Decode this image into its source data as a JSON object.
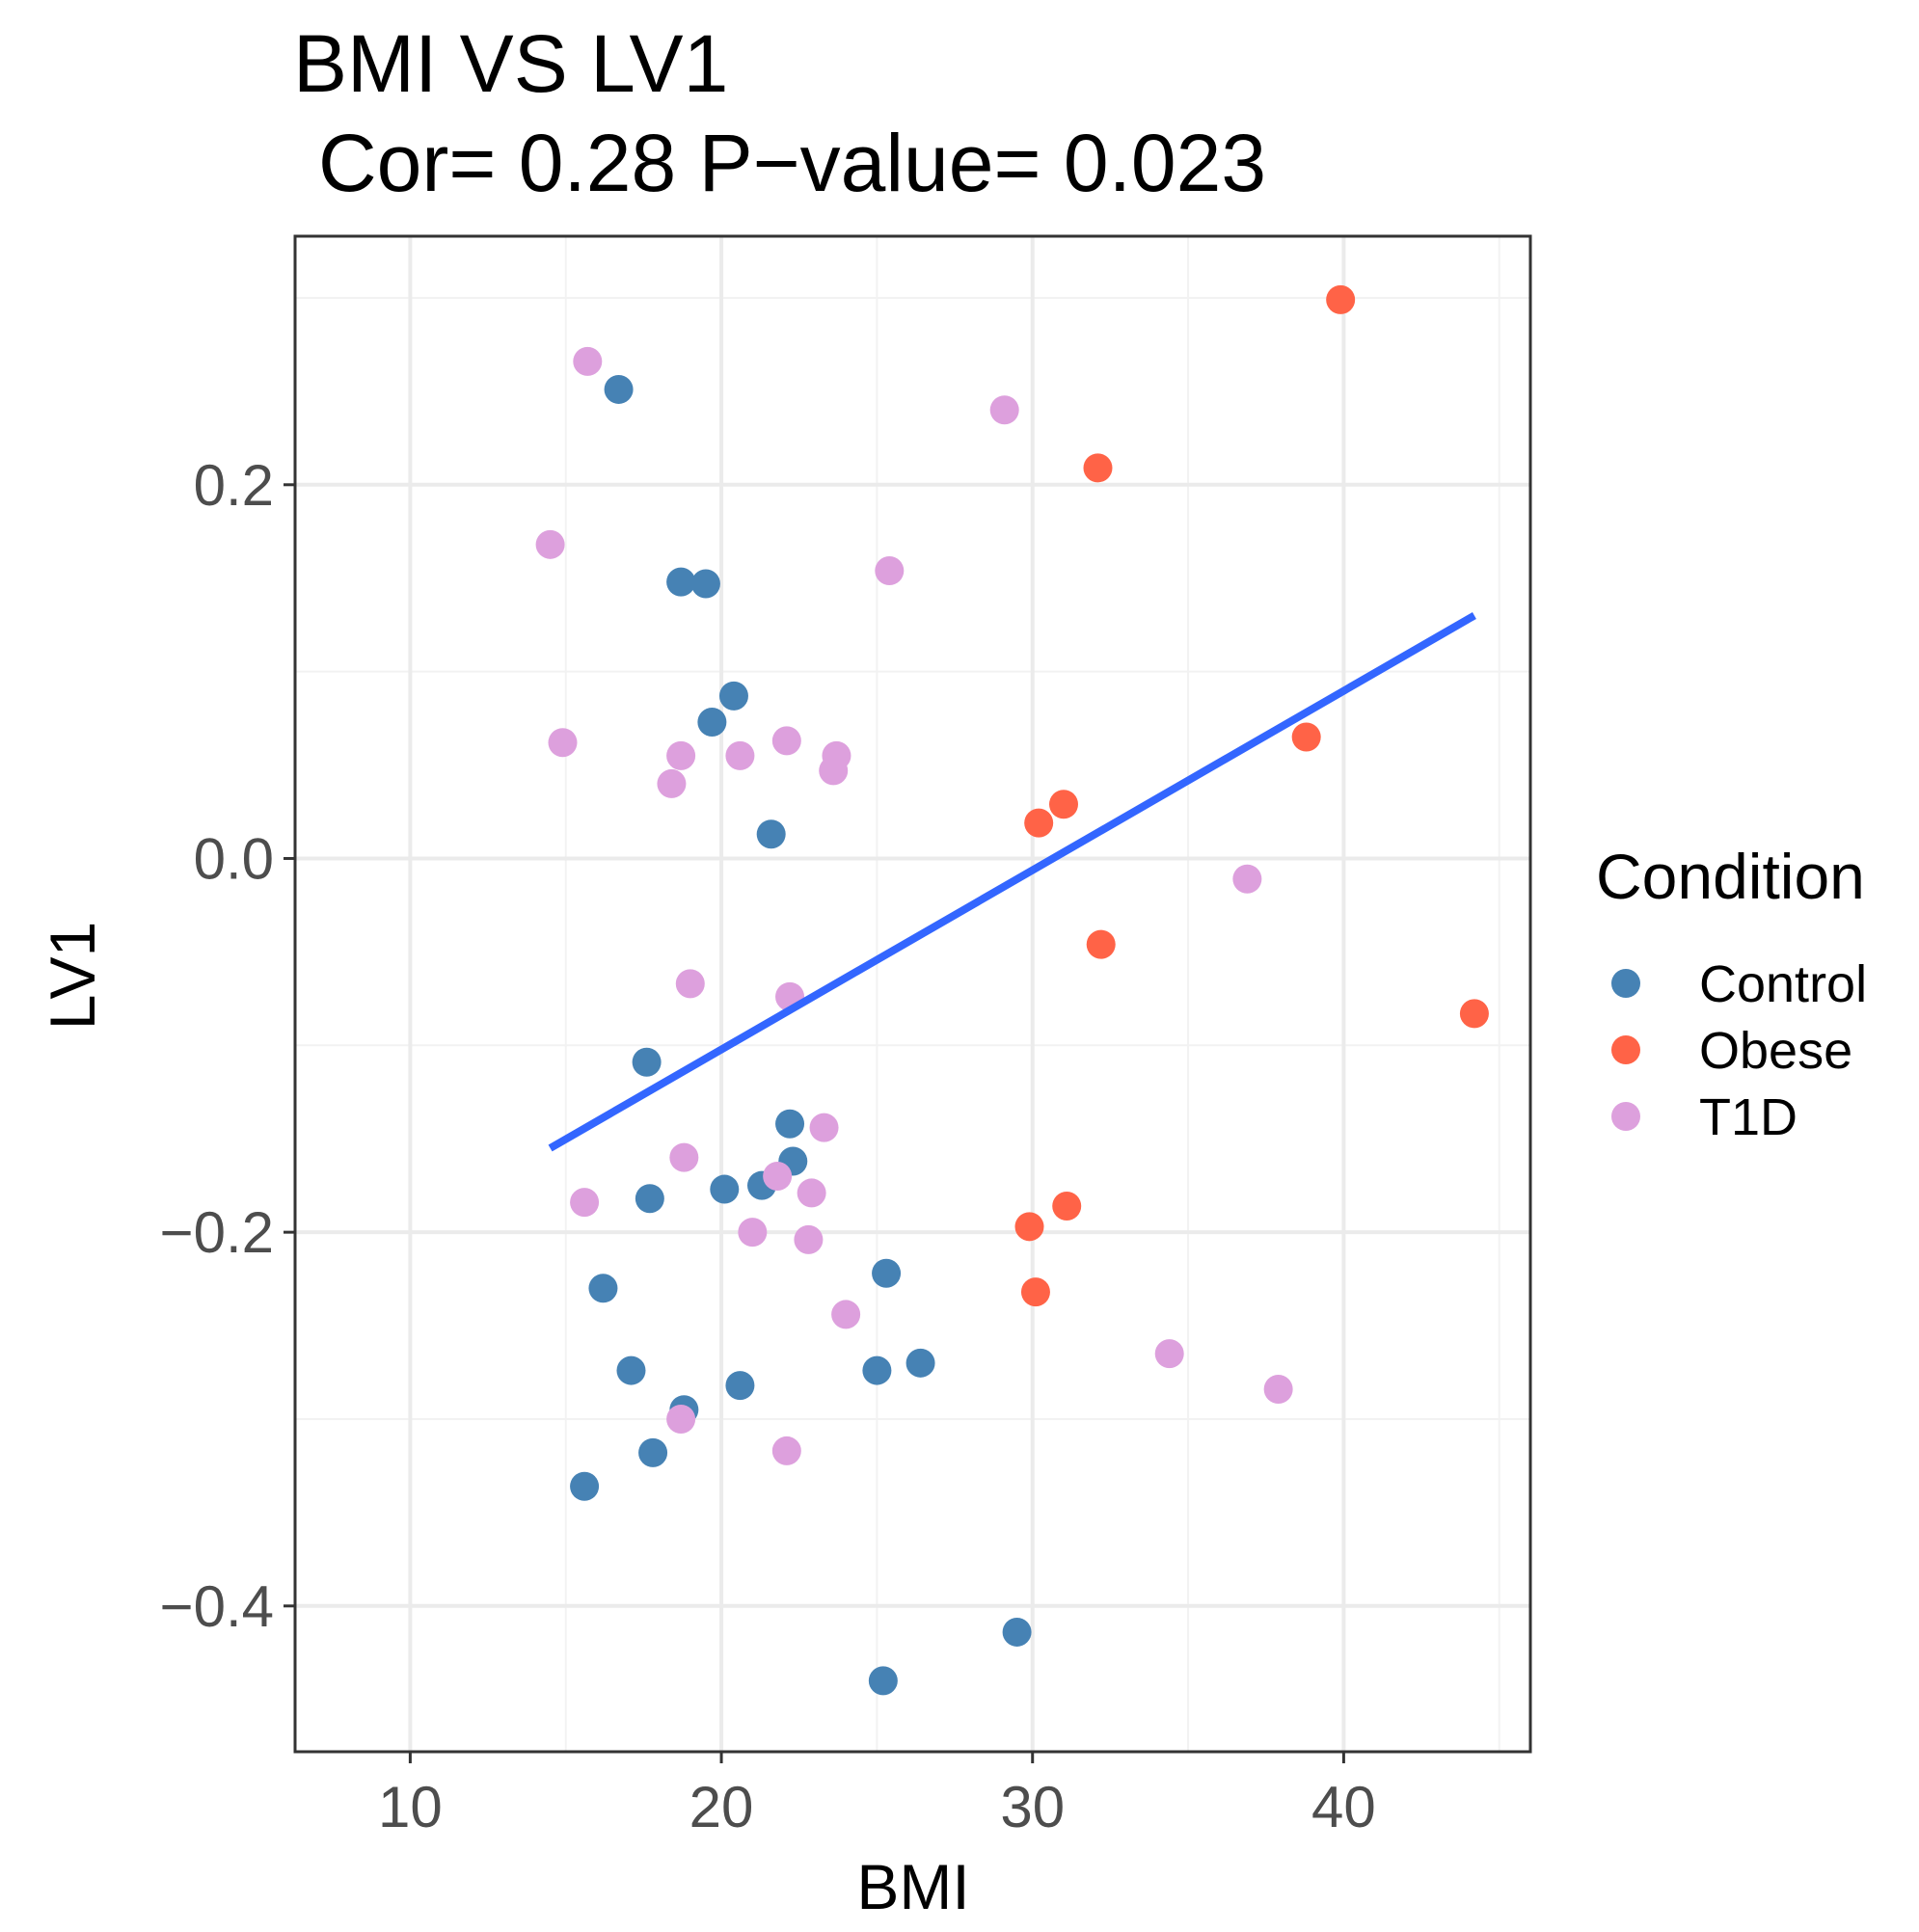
{
  "chart_data": {
    "type": "scatter",
    "title": "BMI VS LV1",
    "subtitle": "Cor= 0.28 P−value= 0.023",
    "xlabel": "BMI",
    "ylabel": "LV1",
    "xlim": [
      6.3,
      46.0
    ],
    "ylim": [
      -0.478,
      0.333
    ],
    "x_ticks": [
      10,
      20,
      30,
      40
    ],
    "y_ticks": [
      -0.4,
      -0.2,
      0.0,
      0.2
    ],
    "x_tick_labels": [
      "10",
      "20",
      "30",
      "40"
    ],
    "y_tick_labels": [
      "−0.4",
      "−0.2",
      "0.0",
      "0.2"
    ],
    "grid": true,
    "legend": {
      "title": "Condition",
      "position": "right"
    },
    "colors": {
      "Control": "#4682b4",
      "Obese": "#ff6347",
      "T1D": "#dda0dd",
      "fit": "#3366ff"
    },
    "series": [
      {
        "name": "Control",
        "points": [
          [
            16.7,
            0.251
          ],
          [
            18.7,
            0.148
          ],
          [
            19.5,
            0.147
          ],
          [
            20.4,
            0.087
          ],
          [
            19.7,
            0.073
          ],
          [
            21.6,
            0.013
          ],
          [
            17.6,
            -0.109
          ],
          [
            22.2,
            -0.142
          ],
          [
            22.3,
            -0.162
          ],
          [
            20.1,
            -0.177
          ],
          [
            21.3,
            -0.175
          ],
          [
            17.7,
            -0.182
          ],
          [
            16.2,
            -0.23
          ],
          [
            25.3,
            -0.222
          ],
          [
            17.1,
            -0.274
          ],
          [
            25.0,
            -0.274
          ],
          [
            26.4,
            -0.27
          ],
          [
            20.6,
            -0.282
          ],
          [
            18.8,
            -0.295
          ],
          [
            17.8,
            -0.318
          ],
          [
            15.6,
            -0.336
          ],
          [
            29.5,
            -0.414
          ],
          [
            25.2,
            -0.44
          ]
        ]
      },
      {
        "name": "Obese",
        "points": [
          [
            39.9,
            0.299
          ],
          [
            32.1,
            0.209
          ],
          [
            38.8,
            0.065
          ],
          [
            31.0,
            0.029
          ],
          [
            30.2,
            0.019
          ],
          [
            32.2,
            -0.046
          ],
          [
            44.2,
            -0.083
          ],
          [
            31.1,
            -0.186
          ],
          [
            29.9,
            -0.197
          ],
          [
            30.1,
            -0.232
          ]
        ]
      },
      {
        "name": "T1D",
        "points": [
          [
            15.7,
            0.266
          ],
          [
            29.1,
            0.24
          ],
          [
            14.5,
            0.168
          ],
          [
            25.4,
            0.154
          ],
          [
            14.9,
            0.062
          ],
          [
            22.1,
            0.063
          ],
          [
            18.7,
            0.055
          ],
          [
            20.6,
            0.055
          ],
          [
            23.7,
            0.055
          ],
          [
            23.6,
            0.047
          ],
          [
            18.4,
            0.04
          ],
          [
            36.9,
            -0.011
          ],
          [
            19.0,
            -0.067
          ],
          [
            22.2,
            -0.074
          ],
          [
            23.3,
            -0.144
          ],
          [
            18.8,
            -0.16
          ],
          [
            21.8,
            -0.17
          ],
          [
            22.9,
            -0.179
          ],
          [
            15.6,
            -0.184
          ],
          [
            21.0,
            -0.2
          ],
          [
            22.8,
            -0.204
          ],
          [
            24.0,
            -0.244
          ],
          [
            34.4,
            -0.265
          ],
          [
            37.9,
            -0.284
          ],
          [
            18.7,
            -0.3
          ],
          [
            22.1,
            -0.317
          ]
        ]
      }
    ],
    "fit_line": {
      "x": [
        14.5,
        44.2
      ],
      "y": [
        -0.155,
        0.13
      ]
    }
  }
}
